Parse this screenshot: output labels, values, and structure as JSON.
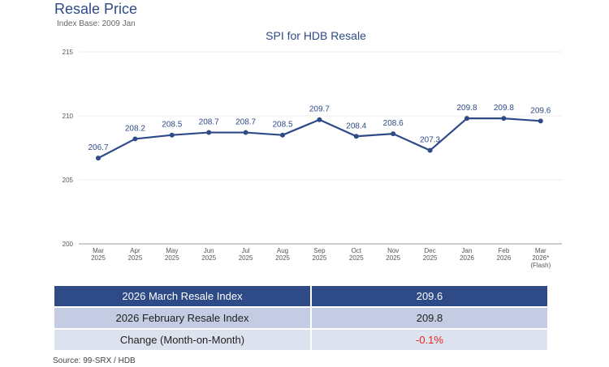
{
  "header": {
    "title": "Resale Price",
    "subtitle": "Index Base: 2009 Jan"
  },
  "chart_data": {
    "type": "line",
    "title": "SPI for HDB Resale",
    "xlabel": "",
    "ylabel": "",
    "ylim": [
      200,
      215
    ],
    "yticks": [
      200,
      205,
      210,
      215
    ],
    "grid": true,
    "categories": [
      [
        "Mar",
        "2025"
      ],
      [
        "Apr",
        "2025"
      ],
      [
        "May",
        "2025"
      ],
      [
        "Jun",
        "2025"
      ],
      [
        "Jul",
        "2025"
      ],
      [
        "Aug",
        "2025"
      ],
      [
        "Sep",
        "2025"
      ],
      [
        "Oct",
        "2025"
      ],
      [
        "Nov",
        "2025"
      ],
      [
        "Dec",
        "2025"
      ],
      [
        "Jan",
        "2026"
      ],
      [
        "Feb",
        "2026"
      ],
      [
        "Mar",
        "2026*",
        "(Flash)"
      ]
    ],
    "values": [
      206.7,
      208.2,
      208.5,
      208.7,
      208.7,
      208.5,
      209.7,
      208.4,
      208.6,
      207.3,
      209.8,
      209.8,
      209.6
    ],
    "value_labels": [
      "206.7",
      "208.2",
      "208.5",
      "208.7",
      "208.7",
      "208.5",
      "209.7",
      "208.4",
      "208.6",
      "207.3",
      "209.8",
      "209.8",
      "209.6"
    ],
    "line_color": "#2e4a87",
    "label_color": "#2e4a87"
  },
  "summary_table": {
    "rows": [
      {
        "label": "2026 March Resale Index",
        "value": "209.6"
      },
      {
        "label": "2026 February Resale Index",
        "value": "209.8"
      },
      {
        "label": "Change (Month-on-Month)",
        "value": "-0.1%"
      }
    ],
    "colors": {
      "header": "#2e4a87",
      "row_light": "#c3cce3",
      "row_lighter": "#dde2ef",
      "negative": "#e8231f"
    }
  },
  "footer": {
    "source": "Source: 99-SRX / HDB"
  }
}
